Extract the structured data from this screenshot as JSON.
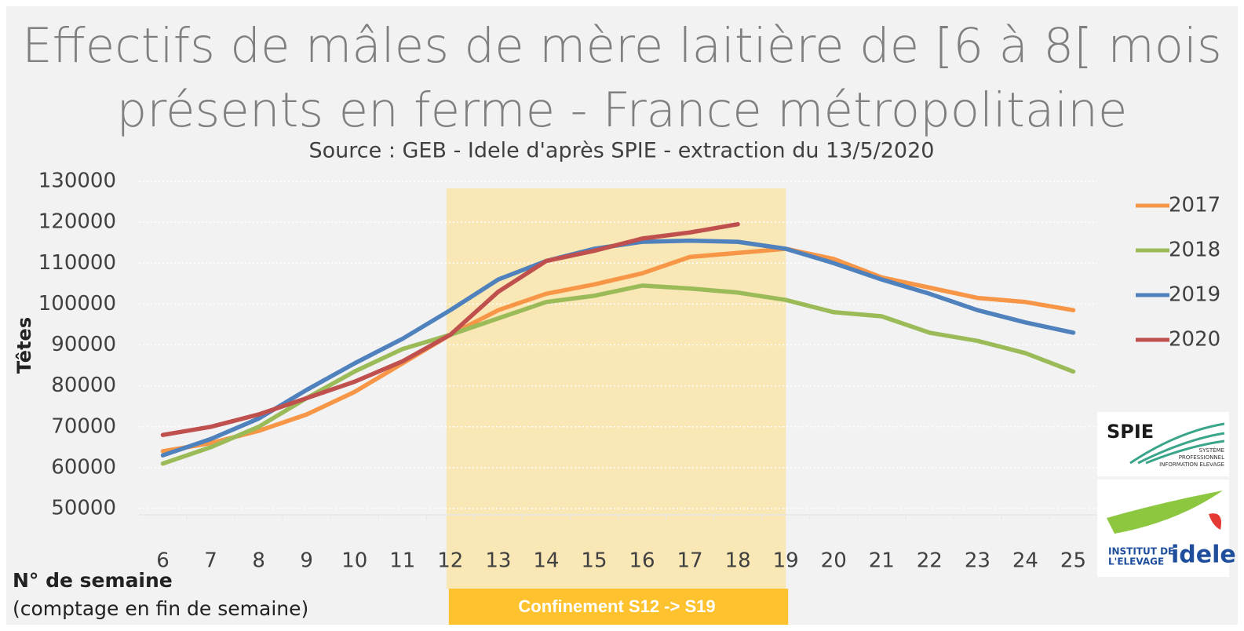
{
  "chart_data": {
    "type": "line",
    "title": "Effectifs de mâles de mère laitière de [6 à 8[ mois présents en ferme - France métropolitaine",
    "subtitle": "Source : GEB - Idele d'après SPIE - extraction du 13/5/2020",
    "y_label": "Têtes",
    "x_label": "N° de semaine",
    "x_note": "(comptage en fin de semaine)",
    "x": [
      6,
      7,
      8,
      9,
      10,
      11,
      12,
      13,
      14,
      15,
      16,
      17,
      18,
      19,
      20,
      21,
      22,
      23,
      24,
      25
    ],
    "xlim": [
      5.5,
      25.5
    ],
    "xticks": [
      6,
      7,
      8,
      9,
      10,
      11,
      12,
      13,
      14,
      15,
      16,
      17,
      18,
      19,
      20,
      21,
      22,
      23,
      24,
      25
    ],
    "ylim": [
      50000,
      130000
    ],
    "yticks": [
      50000,
      60000,
      70000,
      80000,
      90000,
      100000,
      110000,
      120000,
      130000
    ],
    "grid": true,
    "legend": "right",
    "highlight": {
      "from": 12,
      "to": 19,
      "label": "Confinement S12 -> S19",
      "color": "#f9e7b5",
      "label_color": "#fdc22e"
    },
    "series": [
      {
        "name": "2017",
        "color": "#f79646",
        "values": [
          64000,
          66000,
          69000,
          73000,
          78500,
          85500,
          92500,
          98500,
          102500,
          104800,
          107500,
          111500,
          112500,
          113500,
          111000,
          106500,
          104000,
          101500,
          100500,
          98500
        ]
      },
      {
        "name": "2018",
        "color": "#9bbb59",
        "values": [
          61000,
          65000,
          70000,
          77000,
          83500,
          89000,
          92500,
          96500,
          100500,
          102000,
          104500,
          103800,
          102800,
          101000,
          98000,
          97000,
          93000,
          91000,
          88000,
          83500
        ]
      },
      {
        "name": "2019",
        "color": "#4f81bd",
        "values": [
          63000,
          67000,
          72000,
          79000,
          85500,
          91500,
          98500,
          106000,
          110500,
          113500,
          115200,
          115500,
          115200,
          113500,
          110000,
          106000,
          102500,
          98500,
          95500,
          93000
        ]
      },
      {
        "name": "2020",
        "color": "#c0504d",
        "values": [
          68000,
          70000,
          73000,
          77000,
          81000,
          86000,
          92500,
          103000,
          110500,
          113000,
          116000,
          117500,
          119500,
          null,
          null,
          null,
          null,
          null,
          null,
          null
        ]
      }
    ]
  },
  "logos": {
    "spie": "SPIE",
    "spie_tagline": [
      "SYSTÈME",
      "PROFESSIONNEL",
      "INFORMATION ELEVAGE"
    ],
    "idele_top": "INSTITUT DE",
    "idele_bottom": "L'ELEVAGE",
    "idele": "idele"
  }
}
